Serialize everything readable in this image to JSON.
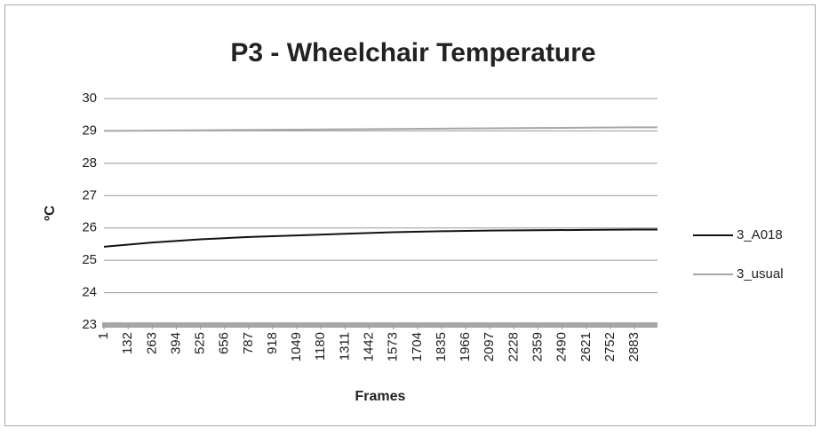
{
  "chart_data": {
    "type": "line",
    "title": "P3 - Wheelchair Temperature",
    "x_label": "Frames",
    "y_label": "ºC",
    "x": [
      1,
      263,
      525,
      787,
      1049,
      1311,
      1573,
      1835,
      2097,
      2359,
      2621,
      2883,
      3008
    ],
    "series": [
      {
        "name": "3_A018",
        "color": "#111111",
        "values": [
          25.42,
          25.55,
          25.65,
          25.72,
          25.77,
          25.82,
          25.87,
          25.9,
          25.92,
          25.93,
          25.94,
          25.95,
          25.95
        ]
      },
      {
        "name": "3_usual",
        "color": "#a6a6a6",
        "values": [
          29.0,
          29.01,
          29.02,
          29.03,
          29.04,
          29.05,
          29.06,
          29.07,
          29.08,
          29.09,
          29.1,
          29.11,
          29.11
        ]
      }
    ],
    "xlim": [
      1,
      3008
    ],
    "xticks": [
      1,
      132,
      263,
      394,
      525,
      656,
      787,
      918,
      1049,
      1180,
      1311,
      1442,
      1573,
      1704,
      1835,
      1966,
      2097,
      2228,
      2359,
      2490,
      2621,
      2752,
      2883
    ],
    "ylim": [
      23,
      30
    ],
    "yticks": [
      23,
      24,
      25,
      26,
      27,
      28,
      29,
      30
    ],
    "grid": true,
    "legend": "right"
  }
}
